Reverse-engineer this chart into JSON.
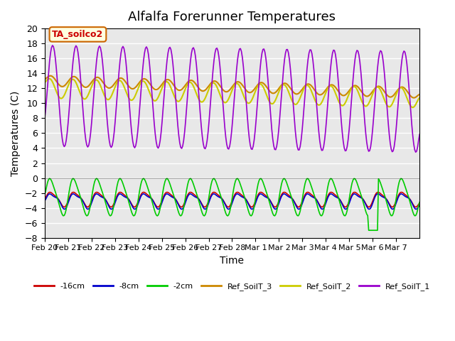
{
  "title": "Alfalfa Forerunner Temperatures",
  "xlabel": "Time",
  "ylabel": "Temperatures (C)",
  "ylim": [
    -8,
    20
  ],
  "yticks": [
    -8,
    -6,
    -4,
    -2,
    0,
    2,
    4,
    6,
    8,
    10,
    12,
    14,
    16,
    18,
    20
  ],
  "annotation_text": "TA_soilco2",
  "annotation_bbox": {
    "boxstyle": "round,pad=0.3",
    "facecolor": "lightyellow",
    "edgecolor": "#cc6600"
  },
  "xtick_labels": [
    "Feb 20",
    "Feb 21",
    "Feb 22",
    "Feb 23",
    "Feb 24",
    "Feb 25",
    "Feb 26",
    "Feb 27",
    "Feb 28",
    "Mar 1",
    "Mar 2",
    "Mar 3",
    "Mar 4",
    "Mar 5",
    "Mar 6",
    "Mar 7"
  ],
  "colors": {
    "neg16cm": "#cc0000",
    "neg8cm": "#0000cc",
    "neg2cm": "#00cc00",
    "ref3": "#cc8800",
    "ref2": "#cccc00",
    "ref1": "#9900cc"
  },
  "legend_labels": [
    "-16cm",
    "-8cm",
    "-2cm",
    "Ref_SoilT_3",
    "Ref_SoilT_2",
    "Ref_SoilT_1"
  ],
  "background_color": "#e8e8e8",
  "grid_color": "#ffffff"
}
